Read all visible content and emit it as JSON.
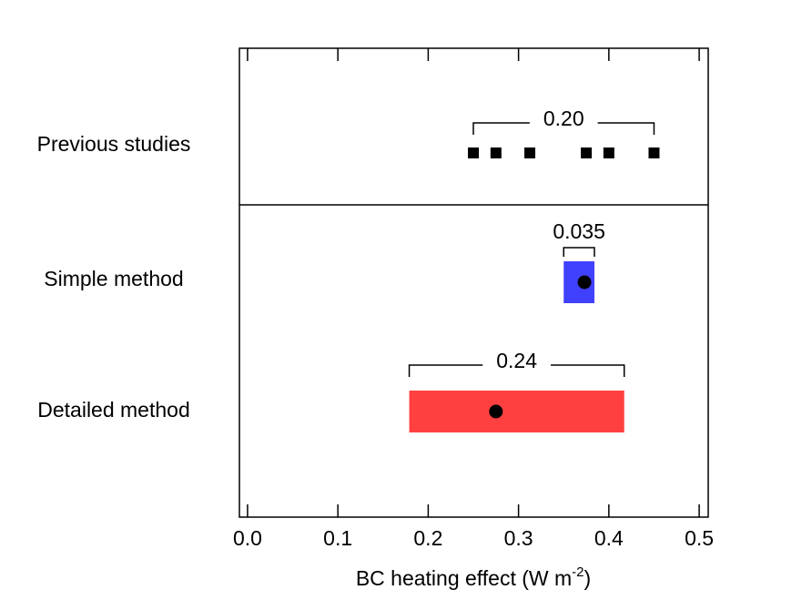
{
  "chart_data": {
    "type": "range",
    "xlabel": {
      "text": "BC heating effect (W m",
      "superscript": "-2",
      "suffix": ")"
    },
    "xlim": [
      -0.009,
      0.51
    ],
    "xticks": [
      {
        "value": 0,
        "label": "0.0"
      },
      0.1,
      0.2,
      0.3,
      0.4,
      0.5
    ],
    "groups": [
      {
        "name": "Previous studies",
        "points": [
          0.25,
          0.275,
          0.3125,
          0.375,
          0.4,
          0.45
        ],
        "span": [
          0.25,
          0.45
        ],
        "span_label": "0.20"
      },
      {
        "name": "Simple method",
        "range": [
          0.35,
          0.384
        ],
        "color": "#4040ff",
        "point": 0.373,
        "span_label": "0.035"
      },
      {
        "name": "Detailed method",
        "range": [
          0.179,
          0.417
        ],
        "color": "#ff4040",
        "point": 0.275,
        "span_label": "0.24"
      }
    ]
  }
}
